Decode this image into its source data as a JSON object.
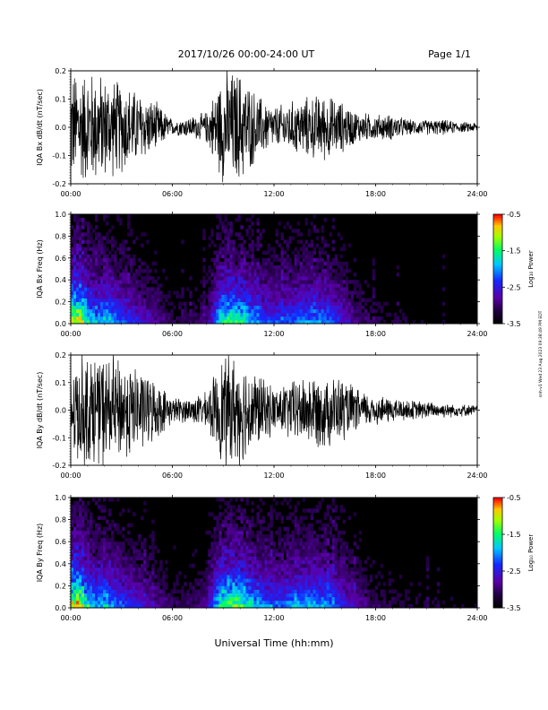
{
  "header": {
    "title": "2017/10/26  00:00-24:00 UT",
    "page": "Page 1/1"
  },
  "side_stamp": "snh-v1 Wed 23 Aug 2023 09:38:49 PM EDT",
  "x_axis": {
    "label": "Universal Time (hh:mm)",
    "ticks": [
      "00:00",
      "06:00",
      "12:00",
      "18:00",
      "24:00"
    ],
    "tick_hours": [
      0,
      6,
      12,
      18,
      24
    ]
  },
  "colorbar": {
    "label": "Log₁₀ Power",
    "ticks": [
      "-0.5",
      "-1.5",
      "-2.5",
      "-3.5"
    ],
    "tick_values": [
      -0.5,
      -1.5,
      -2.5,
      -3.5
    ],
    "range": [
      -3.5,
      -0.5
    ]
  },
  "chart_data": [
    {
      "type": "line",
      "ylabel": "IQA Bx dB/dt (nT/sec)",
      "ylim": [
        -0.2,
        0.2
      ],
      "yticks": [
        "0.2",
        "0.1",
        "0.0",
        "-0.1",
        "-0.2"
      ],
      "ytick_values": [
        0.2,
        0.1,
        0.0,
        -0.1,
        -0.2
      ],
      "xlim_hours": [
        0,
        24
      ],
      "envelope_hours": [
        0,
        0.5,
        1,
        1.5,
        2,
        3,
        4,
        5,
        6,
        7,
        8,
        9,
        10,
        11,
        12,
        13,
        14,
        15,
        16,
        17,
        18,
        19,
        20,
        21,
        22,
        23,
        24
      ],
      "envelope_amplitude": [
        0.22,
        0.22,
        0.22,
        0.22,
        0.2,
        0.18,
        0.14,
        0.1,
        0.03,
        0.04,
        0.06,
        0.22,
        0.22,
        0.13,
        0.08,
        0.1,
        0.12,
        0.13,
        0.1,
        0.06,
        0.05,
        0.05,
        0.03,
        0.03,
        0.03,
        0.02,
        0.02
      ]
    },
    {
      "type": "heatmap",
      "ylabel": "IQA Bx Freq (Hz)",
      "ylim": [
        0,
        1.0
      ],
      "yticks": [
        "1.0",
        "0.8",
        "0.6",
        "0.4",
        "0.2",
        "0.0"
      ],
      "ytick_values": [
        1.0,
        0.8,
        0.6,
        0.4,
        0.2,
        0.0
      ],
      "xlim_hours": [
        0,
        24
      ],
      "zlim": [
        -3.5,
        -0.5
      ],
      "intensity_hours": [
        0,
        0.5,
        1,
        1.5,
        2,
        3,
        4,
        5,
        6,
        7,
        8,
        9,
        10,
        11,
        12,
        13,
        14,
        15,
        16,
        17,
        18,
        19,
        20,
        21,
        22,
        23,
        24
      ],
      "intensity": [
        0.8,
        0.85,
        0.6,
        0.45,
        0.55,
        0.4,
        0.3,
        0.2,
        0.1,
        0.1,
        0.15,
        0.65,
        0.65,
        0.45,
        0.35,
        0.4,
        0.45,
        0.45,
        0.3,
        0.15,
        0.1,
        0.08,
        0.06,
        0.05,
        0.05,
        0.04,
        0.04
      ]
    },
    {
      "type": "line",
      "ylabel": "IQA By dB/dt (nT/sec)",
      "ylim": [
        -0.2,
        0.2
      ],
      "yticks": [
        "0.2",
        "0.1",
        "0.0",
        "-0.1",
        "-0.2"
      ],
      "ytick_values": [
        0.2,
        0.1,
        0.0,
        -0.1,
        -0.2
      ],
      "xlim_hours": [
        0,
        24
      ],
      "envelope_hours": [
        0,
        0.5,
        1,
        1.5,
        2,
        3,
        4,
        5,
        6,
        7,
        8,
        9,
        10,
        11,
        12,
        13,
        14,
        15,
        16,
        17,
        18,
        19,
        20,
        21,
        22,
        23,
        24
      ],
      "envelope_amplitude": [
        0.22,
        0.22,
        0.22,
        0.22,
        0.22,
        0.2,
        0.17,
        0.12,
        0.05,
        0.05,
        0.07,
        0.22,
        0.22,
        0.15,
        0.09,
        0.12,
        0.14,
        0.15,
        0.13,
        0.08,
        0.06,
        0.05,
        0.04,
        0.035,
        0.03,
        0.025,
        0.02
      ]
    },
    {
      "type": "heatmap",
      "ylabel": "IQA By Freq (Hz)",
      "ylim": [
        0,
        1.0
      ],
      "yticks": [
        "1.0",
        "0.8",
        "0.6",
        "0.4",
        "0.2",
        "0.0"
      ],
      "ytick_values": [
        1.0,
        0.8,
        0.6,
        0.4,
        0.2,
        0.0
      ],
      "xlim_hours": [
        0,
        24
      ],
      "zlim": [
        -3.5,
        -0.5
      ],
      "intensity_hours": [
        0,
        0.5,
        1,
        1.5,
        2,
        3,
        4,
        5,
        6,
        7,
        8,
        9,
        10,
        11,
        12,
        13,
        14,
        15,
        16,
        17,
        18,
        19,
        20,
        21,
        22,
        23,
        24
      ],
      "intensity": [
        0.8,
        0.85,
        0.6,
        0.5,
        0.55,
        0.4,
        0.3,
        0.2,
        0.12,
        0.12,
        0.18,
        0.7,
        0.7,
        0.5,
        0.4,
        0.45,
        0.5,
        0.5,
        0.35,
        0.2,
        0.12,
        0.1,
        0.08,
        0.06,
        0.05,
        0.05,
        0.04
      ]
    }
  ]
}
